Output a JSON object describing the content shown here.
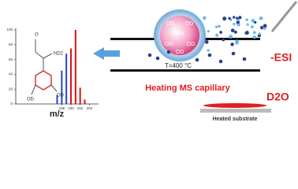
{
  "spectrum": {
    "type": "bar",
    "xlabel": "m/z",
    "xlim": [
      188,
      206
    ],
    "ylim": [
      0,
      100
    ],
    "yticks": [
      0,
      20,
      40,
      60,
      80,
      100
    ],
    "xticks": [
      198,
      200,
      202,
      204
    ],
    "series": [
      {
        "color": "#2244cc",
        "x": [
          197,
          198,
          199
        ],
        "values": [
          12,
          45,
          68
        ]
      },
      {
        "color": "#dd1111",
        "x": [
          200,
          201,
          202,
          203
        ],
        "values": [
          75,
          100,
          22,
          6
        ]
      }
    ]
  },
  "molecule": {
    "top": "O",
    "amine": "ND2",
    "left": "OD",
    "right": "OD"
  },
  "droplet": {
    "groups": [
      "OD",
      "OD",
      "OH",
      "OD",
      "OD",
      "OD"
    ]
  },
  "labels": {
    "temperature": "T=400 °C",
    "capillary": "Heating MS capillary",
    "esi": "-ESI",
    "solvent": "D2O",
    "substrate": "Heated substrate"
  }
}
